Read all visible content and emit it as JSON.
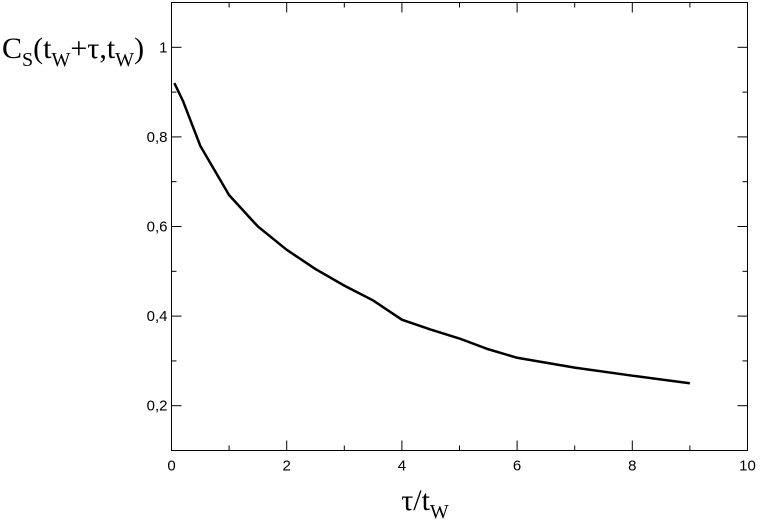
{
  "chart_data": {
    "type": "line",
    "ylabel": [
      "C",
      "S",
      "(t",
      "W",
      "+τ,t",
      "W",
      ")"
    ],
    "xlabel": [
      "τ/t",
      "W"
    ],
    "xlim": [
      0,
      10
    ],
    "ylim": [
      0.1,
      1.1
    ],
    "xticks": [
      0,
      2,
      4,
      6,
      8,
      10
    ],
    "xminor": [
      1,
      3,
      5,
      7,
      9
    ],
    "yticks": [
      {
        "value": 0.2,
        "label": "0,2"
      },
      {
        "value": 0.4,
        "label": "0,4"
      },
      {
        "value": 0.6,
        "label": "0,6"
      },
      {
        "value": 0.8,
        "label": "0,8"
      },
      1
    ],
    "yminor": [
      0.3,
      0.5,
      0.7,
      0.9
    ],
    "series": [
      {
        "color": "#000000",
        "x": [
          0.05,
          0.2,
          0.5,
          1,
          1.5,
          2,
          2.5,
          3,
          3.5,
          4,
          4.5,
          5,
          5.5,
          6,
          7,
          8,
          9
        ],
        "values": [
          0.92,
          0.88,
          0.78,
          0.67,
          0.6,
          0.548,
          0.505,
          0.468,
          0.435,
          0.392,
          0.37,
          0.35,
          0.326,
          0.307,
          0.285,
          0.267,
          0.25
        ]
      }
    ]
  }
}
